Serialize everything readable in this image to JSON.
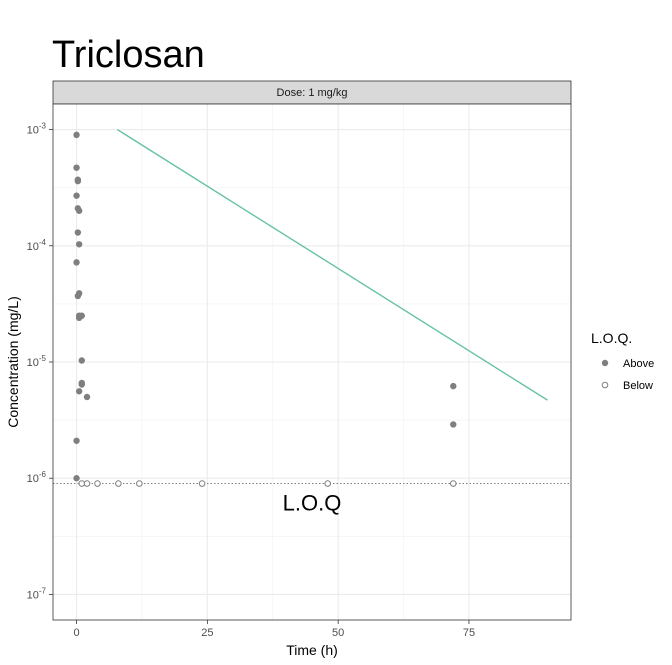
{
  "chart_data": {
    "type": "scatter",
    "title": "Triclosan",
    "facet_label": "Dose: 1 mg/kg",
    "xlabel": "Time (h)",
    "ylabel": "Concentration (mg/L)",
    "x_scale": "linear",
    "y_scale": "log10",
    "xlim": [
      -4.5,
      94.5
    ],
    "ylim_log10": [
      -7.22,
      -2.78
    ],
    "x_ticks": [
      0,
      25,
      50,
      75
    ],
    "x_tick_labels": [
      "0",
      "25",
      "50",
      "75"
    ],
    "y_ticks_exp": [
      -7,
      -6,
      -5,
      -4,
      -3
    ],
    "y_tick_base": "10",
    "y_tick_exponents": [
      "-7",
      "-6",
      "-5",
      "-4",
      "-3"
    ],
    "grid": true,
    "legend": {
      "title": "L.O.Q.",
      "position": "right",
      "entries": [
        {
          "label": "Above",
          "marker": "filled"
        },
        {
          "label": "Below",
          "marker": "open"
        }
      ]
    },
    "series": [
      {
        "name": "Above",
        "marker": "filled",
        "color": "#7f7f7f",
        "points": [
          [
            0,
            0.0009
          ],
          [
            0,
            0.00047
          ],
          [
            0.25,
            0.00037
          ],
          [
            0.25,
            0.00036
          ],
          [
            0,
            0.00027
          ],
          [
            0.25,
            0.00021
          ],
          [
            0.5,
            0.0002
          ],
          [
            0.25,
            0.00013
          ],
          [
            0.5,
            0.000103
          ],
          [
            0,
            7.2e-05
          ],
          [
            0.5,
            3.9e-05
          ],
          [
            0.25,
            3.7e-05
          ],
          [
            0.5,
            2.5e-05
          ],
          [
            1,
            2.5e-05
          ],
          [
            0.5,
            2.4e-05
          ],
          [
            1,
            1.03e-05
          ],
          [
            1,
            6.6e-06
          ],
          [
            1,
            6.4e-06
          ],
          [
            0.5,
            5.6e-06
          ],
          [
            2,
            5e-06
          ],
          [
            0,
            2.1e-06
          ],
          [
            0,
            1e-06
          ],
          [
            72,
            6.2e-06
          ],
          [
            72,
            2.9e-06
          ]
        ]
      },
      {
        "name": "Below",
        "marker": "open",
        "color": "#7f7f7f",
        "points": [
          [
            1,
            9e-07
          ],
          [
            2,
            9e-07
          ],
          [
            4,
            9e-07
          ],
          [
            8,
            9e-07
          ],
          [
            12,
            9e-07
          ],
          [
            24,
            9e-07
          ],
          [
            48,
            9e-07
          ],
          [
            72,
            9e-07
          ]
        ]
      }
    ],
    "fit_line": {
      "color": "#66c2a5",
      "points": [
        [
          7.8,
          0.001
        ],
        [
          90,
          4.7e-06
        ]
      ]
    },
    "loq_line": {
      "y": 9e-07,
      "label": "L.O.Q",
      "label_x": 45,
      "style": "dotted"
    }
  }
}
